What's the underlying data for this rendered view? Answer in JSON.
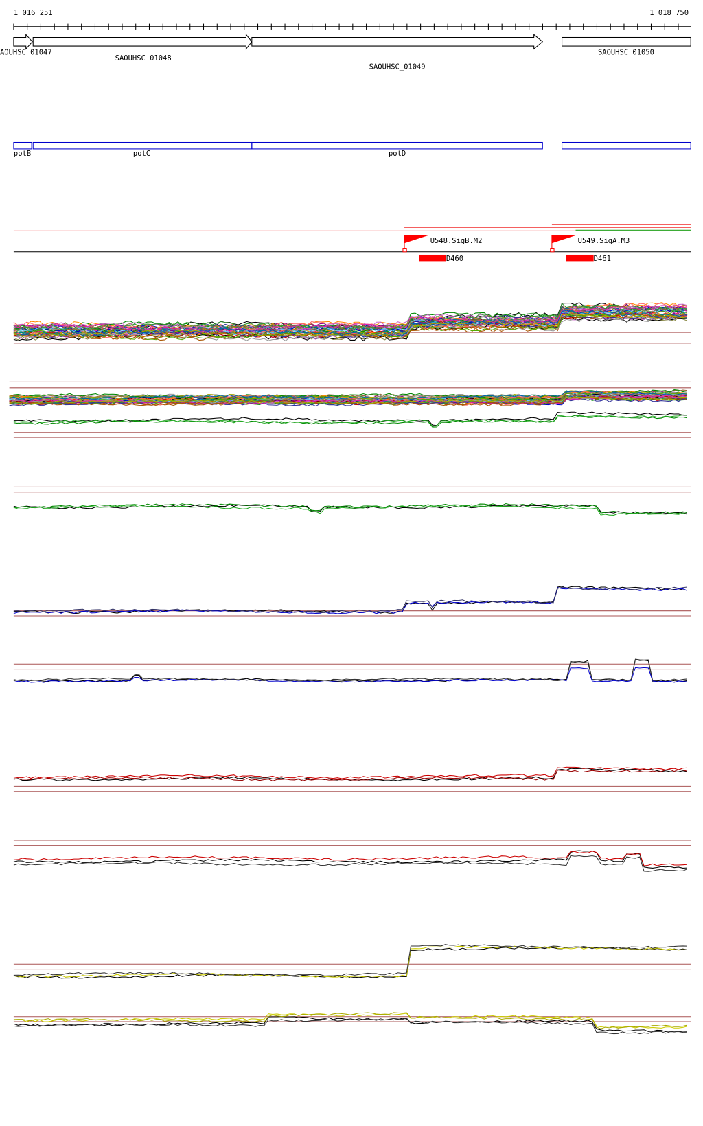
{
  "ruler": {
    "start": "1 016 251",
    "end": "1 018 750"
  },
  "genes": [
    {
      "label": "AOUHSC_01047"
    },
    {
      "label": "SAOUHSC_01048"
    },
    {
      "label": "SAOUHSC_01049"
    },
    {
      "label": "SAOUHSC_01050"
    }
  ],
  "operons": [
    {
      "label": "potB"
    },
    {
      "label": "potC"
    },
    {
      "label": "potD"
    }
  ],
  "promoters": [
    {
      "label": "U548.SigB.M2"
    },
    {
      "label": "U549.SigA.M3"
    }
  ],
  "segments": [
    {
      "label": "D460"
    },
    {
      "label": "D461"
    }
  ]
}
